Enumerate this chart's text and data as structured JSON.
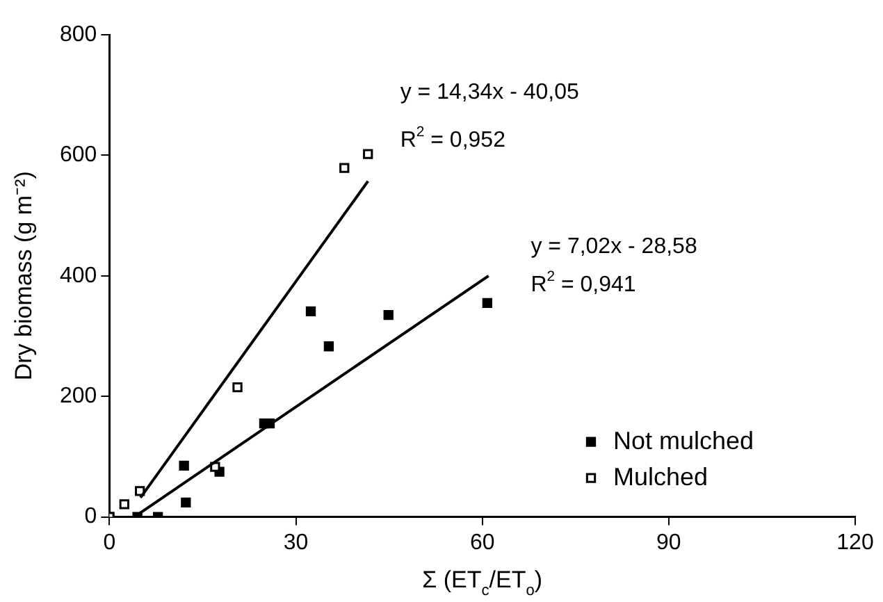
{
  "chart_data": {
    "type": "scatter",
    "xlabel": "Σ (ET$_{c}$/ET$_{o}$)",
    "ylabel": "Dry biomass (g m⁻²)",
    "xlim": [
      0,
      120
    ],
    "xticks": [
      0,
      30,
      60,
      90,
      120
    ],
    "ylim": [
      0,
      800
    ],
    "yticks": [
      0,
      200,
      400,
      600,
      800
    ],
    "grid": false,
    "legend": "bottom right",
    "marker": "square",
    "series": [
      {
        "name": "Not mulched",
        "color": "#000000",
        "x": [
          0,
          4.5,
          7.8,
          12,
          12.3,
          17.7,
          24.9,
          25.8,
          32.4,
          35.3,
          44.9,
          60.8
        ],
        "values": [
          0,
          0,
          0,
          85,
          24,
          75,
          155,
          155,
          341,
          283,
          335,
          355
        ]
      },
      {
        "name": "Mulched",
        "color": "#ffffff",
        "x": [
          0,
          2.4,
          4.9,
          17,
          20.6,
          37.8,
          41.6
        ],
        "values": [
          0,
          21,
          43,
          83,
          215,
          579,
          602
        ]
      },
      {
        "type": "line",
        "color": "#000000",
        "marker": "none",
        "x": [
          5,
          41.6
        ],
        "values": [
          32,
          557
        ]
      },
      {
        "type": "line",
        "color": "#000000",
        "marker": "none",
        "x": [
          4,
          61
        ],
        "values": [
          0,
          400
        ]
      }
    ],
    "annotations": [
      "y = 14,34x - 40,05",
      "R$^{2}$ = 0,952",
      "y = 7,02x - 28,58",
      "R$^{2}$ = 0,941"
    ]
  }
}
